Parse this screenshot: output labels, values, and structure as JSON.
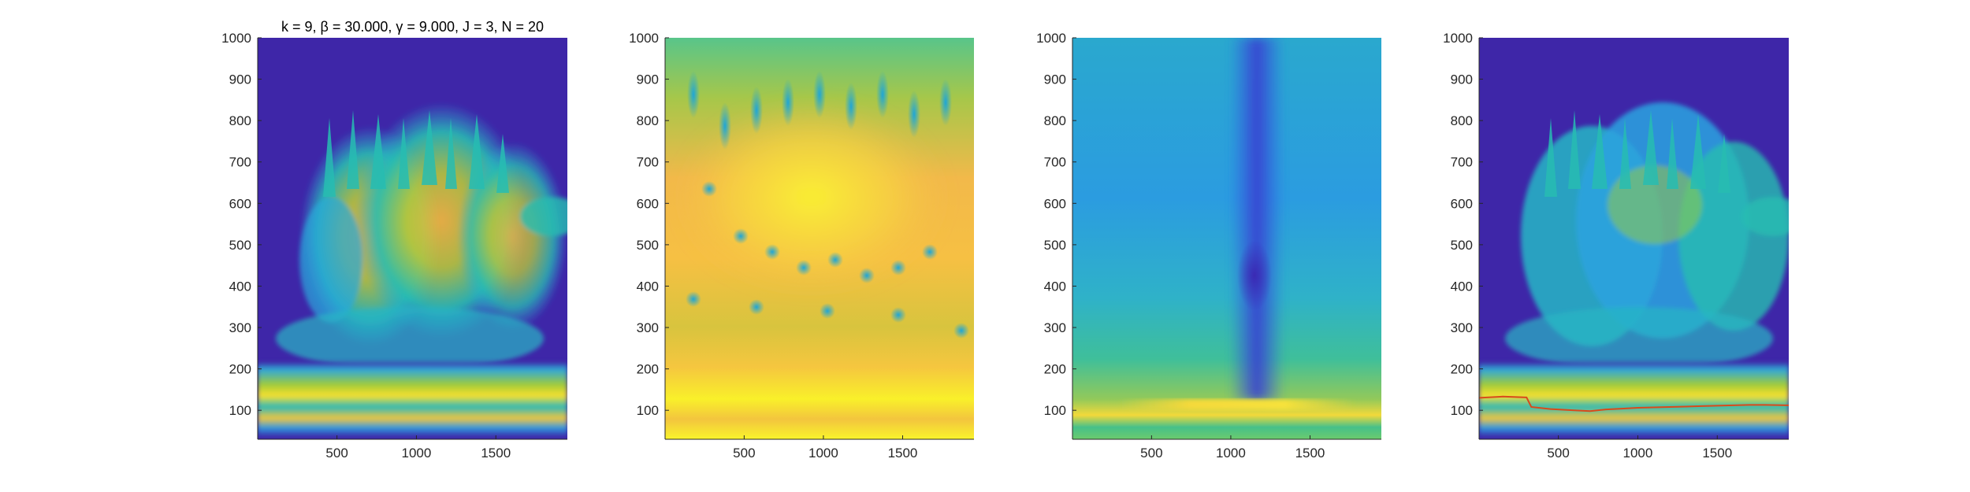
{
  "chart_data": [
    {
      "type": "heatmap",
      "title": "k = 9, β = 30.000, γ = 9.000, J = 3, N = 20",
      "xlabel": "",
      "ylabel": "",
      "xlim": [
        1,
        1950
      ],
      "ylim": [
        30,
        1000
      ],
      "x_ticks": [
        500,
        1000,
        1500
      ],
      "y_ticks": [
        100,
        200,
        300,
        400,
        500,
        600,
        700,
        800,
        900,
        1000
      ],
      "colormap": "parula",
      "background_color": "#3e26a8",
      "content": "sparse spectrogram: bright bands at low frequency (60-220), tufted ridges between 350 and 850"
    },
    {
      "type": "heatmap",
      "title": "",
      "xlabel": "",
      "ylabel": "",
      "xlim": [
        1,
        1950
      ],
      "ylim": [
        30,
        1000
      ],
      "x_ticks": [
        500,
        1000,
        1500
      ],
      "y_ticks": [
        100,
        200,
        300,
        400,
        500,
        600,
        700,
        800,
        900,
        1000
      ],
      "colormap": "parula",
      "content": "smooth field: yellow/orange plateau centered near 500-650, yellow bands near 100-200, cyan spots scattered"
    },
    {
      "type": "heatmap",
      "title": "",
      "xlabel": "",
      "ylabel": "",
      "xlim": [
        1,
        1950
      ],
      "ylim": [
        30,
        1000
      ],
      "x_ticks": [
        500,
        1000,
        1500
      ],
      "y_ticks": [
        100,
        200,
        300,
        400,
        500,
        600,
        700,
        800,
        900,
        1000
      ],
      "colormap": "parula",
      "content": "mostly blue-green field with dark column near x=1130 and bright yellow band near 100"
    },
    {
      "type": "heatmap",
      "title": "",
      "xlabel": "",
      "ylabel": "",
      "xlim": [
        1,
        1950
      ],
      "ylim": [
        30,
        1000
      ],
      "x_ticks": [
        500,
        1000,
        1500
      ],
      "y_ticks": [
        100,
        200,
        300,
        400,
        500,
        600,
        700,
        800,
        900,
        1000
      ],
      "colormap": "parula",
      "background_color": "#3e26a8",
      "overlay_line_color": "#d94a1a",
      "overlay_line": {
        "x": [
          1,
          150,
          300,
          330,
          450,
          600,
          700,
          800,
          900,
          1000,
          1100,
          1200,
          1300,
          1400,
          1500,
          1600,
          1700,
          1800,
          1950
        ],
        "y": [
          130,
          133,
          131,
          108,
          103,
          100,
          98,
          102,
          104,
          106,
          107,
          108,
          109,
          110,
          111,
          112,
          113,
          113,
          112
        ]
      }
    }
  ]
}
